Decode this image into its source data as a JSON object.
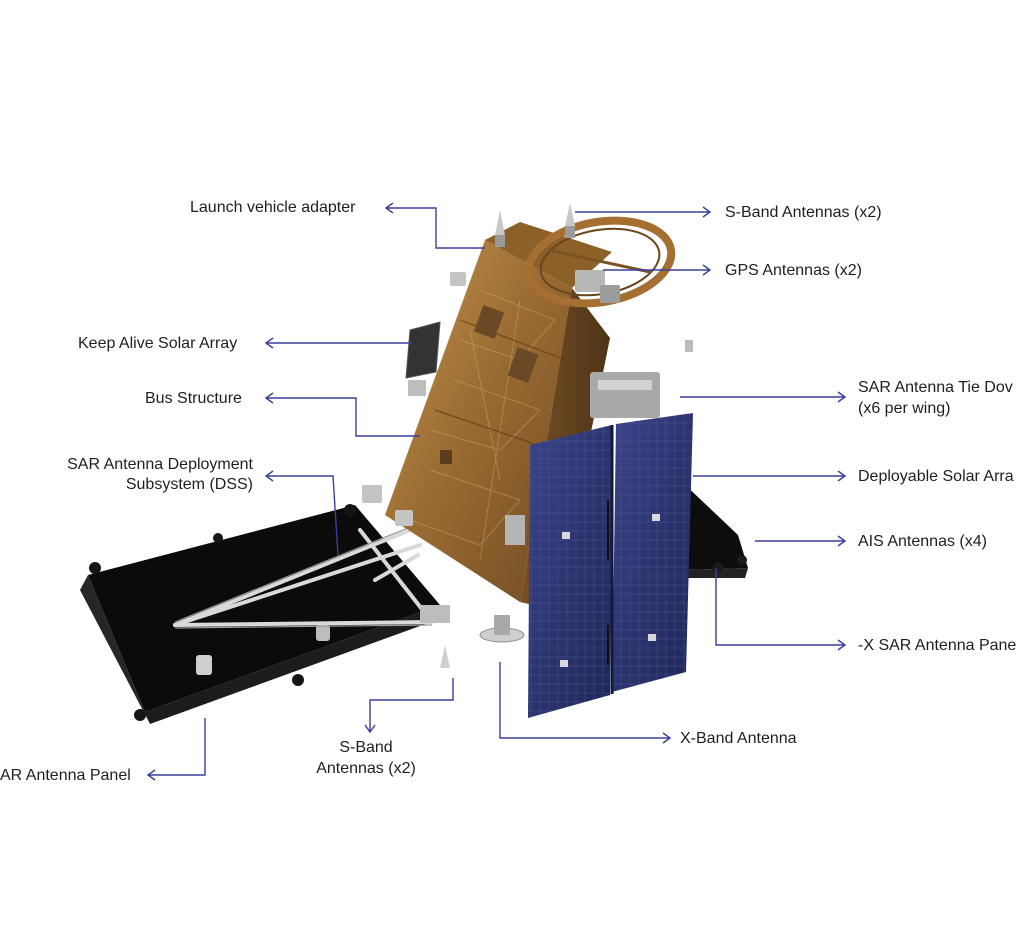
{
  "labels": {
    "launch_vehicle_adapter": "Launch vehicle adapter",
    "keep_alive_solar_array": "Keep Alive Solar Array",
    "bus_structure": "Bus Structure",
    "sar_dss_line1": "SAR Antenna Deployment",
    "sar_dss_line2": "Subsystem (DSS)",
    "sar_panel_left": "AR Antenna Panel",
    "s_band_bottom_line1": "S-Band",
    "s_band_bottom_line2": "Antennas (x2)",
    "x_band_antenna": "X-Band Antenna",
    "s_band_top": "S-Band Antennas (x2)",
    "gps_antennas": "GPS Antennas (x2)",
    "sar_tie_down_line1": "SAR Antenna Tie Dov",
    "sar_tie_down_line2": "(x6 per wing)",
    "deployable_solar_array": "Deployable Solar Arra",
    "ais_antennas": "AIS Antennas (x4)",
    "neg_x_sar_panel": "-X SAR Antenna Pane"
  },
  "colors": {
    "leader_line": "#3a3f9a",
    "gold_foil": "#a87a3c",
    "solar_panel": "#2a3168",
    "sar_panel": "#0e0e0e",
    "text": "#1f1f1f"
  }
}
